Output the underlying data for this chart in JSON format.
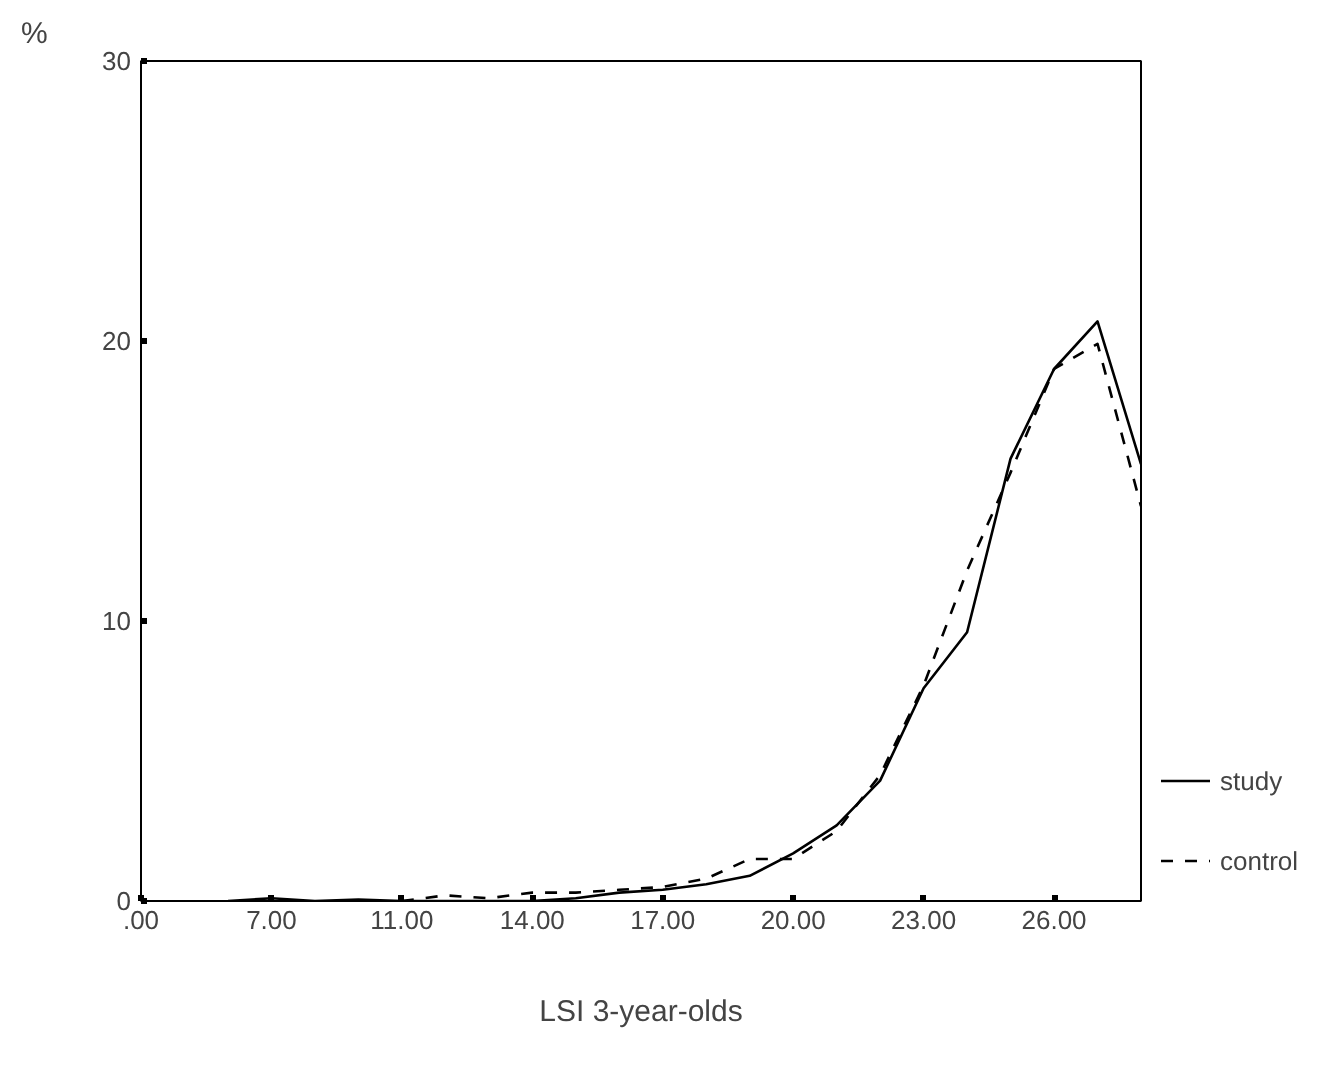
{
  "chart_data": {
    "type": "line",
    "xlabel": "LSI 3-year-olds",
    "ylabel": "%",
    "categories": [
      ".00",
      null,
      null,
      "7.00",
      null,
      null,
      "11.00",
      null,
      null,
      "14.00",
      null,
      null,
      "17.00",
      null,
      null,
      "20.00",
      null,
      null,
      "23.00",
      null,
      null,
      "26.00",
      null,
      null
    ],
    "series": [
      {
        "name": "study",
        "color": "#000000",
        "line_style": "solid",
        "values": [
          null,
          null,
          0,
          0.1,
          0,
          0.05,
          0,
          0,
          0,
          0,
          0.1,
          0.3,
          0.4,
          0.6,
          0.9,
          1.7,
          2.7,
          4.3,
          7.6,
          9.6,
          15.8,
          19.0,
          20.7,
          15.6
        ]
      },
      {
        "name": "control",
        "color": "#000000",
        "line_style": "dashed",
        "values": [
          null,
          null,
          null,
          null,
          null,
          null,
          0,
          0.2,
          0.1,
          0.3,
          0.3,
          0.4,
          0.5,
          0.8,
          1.5,
          1.5,
          2.5,
          4.5,
          7.7,
          11.8,
          15.3,
          19.0,
          19.9,
          14.1
        ]
      }
    ],
    "ylim": [
      0,
      30
    ],
    "yticks": [
      0,
      10,
      20,
      30
    ],
    "grid": false,
    "legend": "right",
    "marker": "none"
  }
}
